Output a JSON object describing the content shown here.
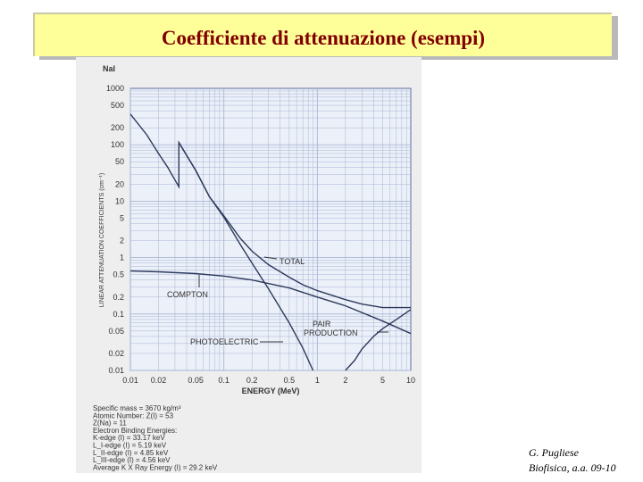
{
  "slide": {
    "title": "Coefficiente di attenuazione  (esempi)",
    "author": "G. Pugliese",
    "course": "Biofisica, a.a. 09-10"
  },
  "figure": {
    "material": "NaI",
    "specs": [
      "Specific mass = 3670 kg/m³",
      "Atomic Number: Z(I)    = 53",
      "                 Z(Na) = 11",
      "Electron Binding Energies:",
      "K-edge (I)      = 33.17 keV",
      "L_I-edge (I)     = 5.19 keV",
      "L_II-edge (I)    = 4.85 keV",
      "L_III-edge (I)   = 4.56 keV",
      "Average K X Ray Energy (I) = 29.2 keV"
    ]
  },
  "chart_data": {
    "type": "line",
    "title": "NaI",
    "xlabel": "ENERGY (MeV)",
    "ylabel": "LINEAR ATTENUATION COEFFICIENTS (cm⁻¹)",
    "x_scale": "log",
    "y_scale": "log",
    "xlim": [
      0.01,
      10
    ],
    "ylim": [
      0.01,
      1000
    ],
    "x_ticks": [
      "0.01",
      "0.02",
      "0.05",
      "0.1",
      "0.2",
      "0.5",
      "1",
      "2",
      "5",
      "10"
    ],
    "x_tick_values": [
      0.01,
      0.02,
      0.05,
      0.1,
      0.2,
      0.5,
      1,
      2,
      5,
      10
    ],
    "y_ticks": [
      "1000",
      "500",
      "200",
      "100",
      "50",
      "20",
      "10",
      "5",
      "2",
      "1",
      "0.5",
      "0.2",
      "0.1",
      "0.05",
      "0.02",
      "0.01"
    ],
    "y_tick_values": [
      1000,
      500,
      200,
      100,
      50,
      20,
      10,
      5,
      2,
      1,
      0.5,
      0.2,
      0.1,
      0.05,
      0.02,
      0.01
    ],
    "grid": true,
    "series": [
      {
        "name": "TOTAL",
        "x": [
          0.01,
          0.015,
          0.02,
          0.025,
          0.033,
          0.033,
          0.05,
          0.07,
          0.1,
          0.15,
          0.2,
          0.3,
          0.5,
          0.7,
          1,
          2,
          3,
          5,
          7,
          10
        ],
        "y": [
          350,
          150,
          70,
          40,
          18,
          110,
          35,
          12,
          5.5,
          2.2,
          1.3,
          0.75,
          0.45,
          0.33,
          0.26,
          0.18,
          0.15,
          0.13,
          0.13,
          0.13
        ]
      },
      {
        "name": "COMPTON",
        "x": [
          0.01,
          0.02,
          0.05,
          0.1,
          0.2,
          0.5,
          1,
          2,
          5,
          10
        ],
        "y": [
          0.58,
          0.56,
          0.52,
          0.47,
          0.4,
          0.29,
          0.2,
          0.14,
          0.075,
          0.045
        ]
      },
      {
        "name": "PHOTOELECTRIC",
        "x": [
          0.033,
          0.05,
          0.07,
          0.1,
          0.15,
          0.2,
          0.3,
          0.5,
          0.7,
          0.9
        ],
        "y": [
          110,
          35,
          12,
          5.2,
          1.7,
          0.8,
          0.28,
          0.07,
          0.025,
          0.01
        ]
      },
      {
        "name": "PAIR PRODUCTION",
        "x": [
          2,
          2.5,
          3,
          4,
          5,
          7,
          10
        ],
        "y": [
          0.01,
          0.015,
          0.024,
          0.04,
          0.055,
          0.08,
          0.12
        ]
      }
    ],
    "annotations": [
      "TOTAL",
      "COMPTON",
      "PAIR PRODUCTION",
      "PHOTOELECTRIC"
    ]
  }
}
